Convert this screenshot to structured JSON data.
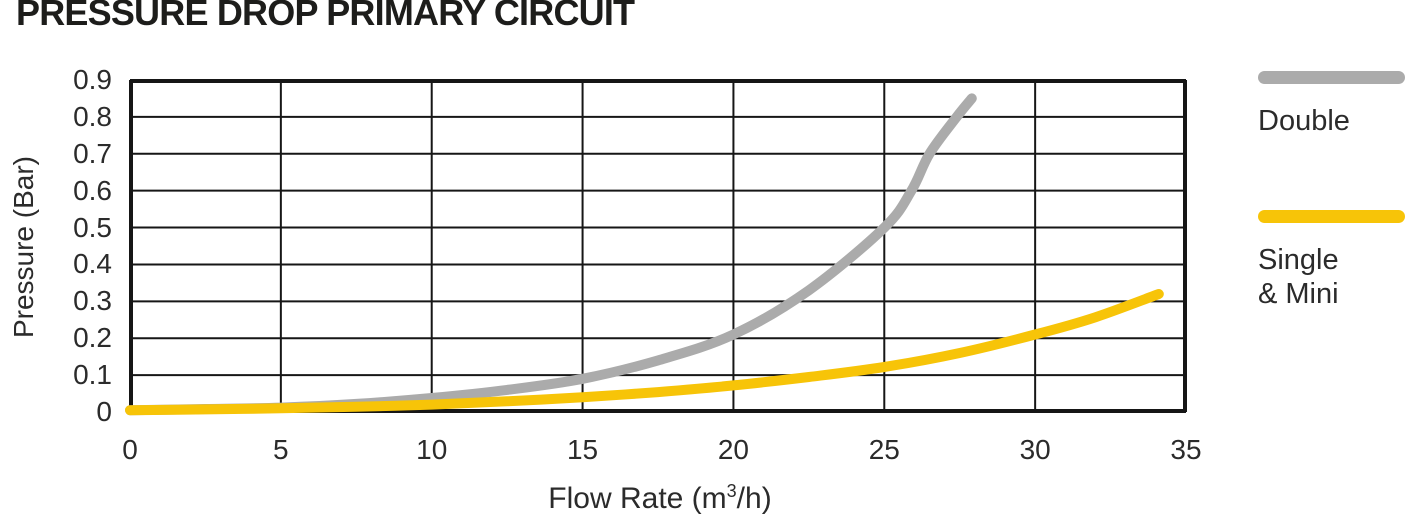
{
  "title": "PRESSURE DROP PRIMARY CIRCUIT",
  "colors": {
    "background": "#FFFFFF",
    "grid": "#161616",
    "title_text": "#1D1D1B",
    "axis_text": "#2B2B2B",
    "double_line": "#ABABAB",
    "single_mini_line": "#F7C408"
  },
  "axis": {
    "ylabel": "Pressure (Bar)",
    "xlabel_prefix": "Flow Rate (m",
    "xlabel_sup": "3",
    "xlabel_suffix": "/h)"
  },
  "legend": {
    "position": "right",
    "items": [
      {
        "lines": [
          "Double"
        ],
        "color": "#ABABAB"
      },
      {
        "lines": [
          "Single",
          "& Mini"
        ],
        "color": "#F7C408"
      }
    ]
  },
  "chart_data": {
    "type": "line",
    "title": "PRESSURE DROP PRIMARY CIRCUIT",
    "xlabel": "Flow Rate (m³/h)",
    "ylabel": "Pressure (Bar)",
    "xlim": [
      0,
      35
    ],
    "ylim": [
      0,
      0.9
    ],
    "grid": true,
    "legend_position": "right",
    "xticks": {
      "values": [
        0,
        5,
        10,
        15,
        20,
        25,
        30,
        35
      ],
      "labels": [
        "0",
        "5",
        "10",
        "15",
        "20",
        "25",
        "30",
        "35"
      ]
    },
    "yticks": {
      "values": [
        0,
        0.1,
        0.2,
        0.3,
        0.4,
        0.5,
        0.6,
        0.7,
        0.8,
        0.9
      ],
      "labels": [
        "0",
        "0.1",
        "0.2",
        "0.3",
        "0.4",
        "0.5",
        "0.6",
        "0.7",
        "0.8",
        "0.9"
      ]
    },
    "series": [
      {
        "name": "Double",
        "color": "#ABABAB",
        "stroke_width": 10,
        "points": [
          [
            0,
            0.005
          ],
          [
            2.5,
            0.008
          ],
          [
            5,
            0.012
          ],
          [
            7.5,
            0.022
          ],
          [
            10,
            0.038
          ],
          [
            12.5,
            0.06
          ],
          [
            15,
            0.09
          ],
          [
            17.5,
            0.14
          ],
          [
            20,
            0.21
          ],
          [
            22.5,
            0.33
          ],
          [
            25,
            0.5
          ],
          [
            25.9,
            0.6
          ],
          [
            26.5,
            0.7
          ],
          [
            27.4,
            0.8
          ],
          [
            27.9,
            0.85
          ]
        ]
      },
      {
        "name": "Single & Mini",
        "color": "#F7C408",
        "stroke_width": 10,
        "points": [
          [
            0,
            0.005
          ],
          [
            2.5,
            0.007
          ],
          [
            5,
            0.01
          ],
          [
            7.5,
            0.014
          ],
          [
            10,
            0.02
          ],
          [
            12.5,
            0.029
          ],
          [
            15,
            0.04
          ],
          [
            17.5,
            0.054
          ],
          [
            20,
            0.072
          ],
          [
            22.5,
            0.095
          ],
          [
            25,
            0.122
          ],
          [
            27.5,
            0.16
          ],
          [
            30,
            0.21
          ],
          [
            32,
            0.257
          ],
          [
            34.1,
            0.32
          ]
        ]
      }
    ]
  }
}
